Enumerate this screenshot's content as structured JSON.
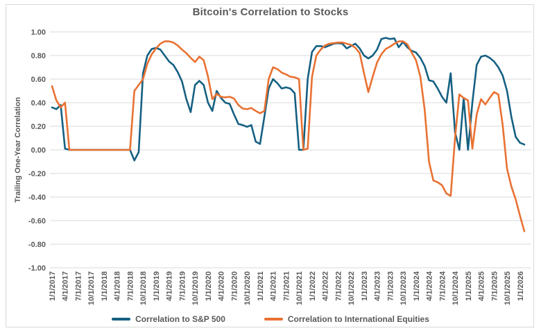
{
  "chart_data": {
    "type": "line",
    "title": "Bitcoin's Correlation to Stocks",
    "xlabel": "",
    "ylabel": "Trailing One-Year Correlation",
    "ylim": [
      -1.0,
      1.0
    ],
    "ytick_step": 0.2,
    "ytick_labels": [
      "1.00",
      "0.80",
      "0.60",
      "0.40",
      "0.20",
      "0.00",
      "-0.20",
      "-0.40",
      "-0.60",
      "-0.80",
      "-1.00"
    ],
    "x_tick_every": 3,
    "x_tick_labels": [
      "1/1/2017",
      "4/1/2017",
      "7/1/2017",
      "10/1/2017",
      "1/1/2018",
      "4/1/2018",
      "7/1/2018",
      "10/1/2018",
      "1/1/2019",
      "4/1/2019",
      "7/1/2019",
      "10/1/2019",
      "1/1/2020",
      "4/1/2020",
      "7/1/2020",
      "10/1/2020",
      "1/1/2021",
      "4/1/2021",
      "7/1/2021",
      "10/1/2021",
      "1/1/2022",
      "4/1/2022",
      "7/1/2022",
      "10/1/2022",
      "1/1/2023",
      "4/1/2023",
      "7/1/2023",
      "10/1/2023",
      "1/1/2024",
      "4/1/2024",
      "7/1/2024",
      "10/1/2024",
      "1/1/2025",
      "4/1/2025",
      "7/1/2025",
      "10/1/2025",
      "1/1/2026"
    ],
    "grid": "horizontal",
    "legend_position": "bottom",
    "colors": {
      "grid": "#D9D9D9",
      "frame": "#D9D9D9",
      "text": "#595959",
      "background": "#FFFFFF"
    },
    "series": [
      {
        "name": "Correlation to S&P 500",
        "color": "#156082",
        "values": [
          0.36,
          0.345,
          0.38,
          0.01,
          0.0,
          0.0,
          0.0,
          0.0,
          0.0,
          0.0,
          0.0,
          0.0,
          0.0,
          0.0,
          0.0,
          0.0,
          0.0,
          0.0,
          0.0,
          -0.09,
          -0.02,
          0.65,
          0.8,
          0.855,
          0.865,
          0.85,
          0.8,
          0.75,
          0.72,
          0.66,
          0.58,
          0.43,
          0.32,
          0.55,
          0.585,
          0.55,
          0.4,
          0.33,
          0.5,
          0.44,
          0.4,
          0.39,
          0.3,
          0.22,
          0.21,
          0.195,
          0.21,
          0.07,
          0.05,
          0.28,
          0.52,
          0.6,
          0.565,
          0.52,
          0.53,
          0.52,
          0.48,
          0.0,
          0.0,
          0.6,
          0.83,
          0.88,
          0.88,
          0.87,
          0.885,
          0.9,
          0.905,
          0.9,
          0.86,
          0.88,
          0.9,
          0.86,
          0.8,
          0.775,
          0.8,
          0.85,
          0.94,
          0.95,
          0.94,
          0.945,
          0.87,
          0.915,
          0.87,
          0.84,
          0.825,
          0.78,
          0.71,
          0.59,
          0.58,
          0.52,
          0.45,
          0.4,
          0.65,
          0.15,
          0.0,
          0.44,
          0.0,
          0.4,
          0.72,
          0.79,
          0.8,
          0.78,
          0.75,
          0.7,
          0.63,
          0.5,
          0.28,
          0.11,
          0.06,
          0.045
        ]
      },
      {
        "name": "Correlation to International Equities",
        "color": "#E97132",
        "values": [
          0.54,
          0.42,
          0.36,
          0.4,
          0.0,
          0.0,
          0.0,
          0.0,
          0.0,
          0.0,
          0.0,
          0.0,
          0.0,
          0.0,
          0.0,
          0.0,
          0.0,
          0.0,
          0.0,
          0.5,
          0.55,
          0.6,
          0.73,
          0.81,
          0.86,
          0.9,
          0.92,
          0.92,
          0.91,
          0.885,
          0.85,
          0.82,
          0.78,
          0.745,
          0.79,
          0.76,
          0.62,
          0.43,
          0.475,
          0.45,
          0.445,
          0.45,
          0.435,
          0.38,
          0.35,
          0.345,
          0.355,
          0.33,
          0.31,
          0.33,
          0.6,
          0.7,
          0.685,
          0.655,
          0.64,
          0.62,
          0.615,
          0.6,
          0.0,
          0.01,
          0.62,
          0.8,
          0.85,
          0.885,
          0.9,
          0.905,
          0.91,
          0.91,
          0.9,
          0.89,
          0.865,
          0.82,
          0.65,
          0.49,
          0.62,
          0.74,
          0.81,
          0.855,
          0.875,
          0.9,
          0.92,
          0.92,
          0.895,
          0.825,
          0.76,
          0.62,
          0.34,
          -0.1,
          -0.26,
          -0.275,
          -0.3,
          -0.37,
          -0.39,
          0.1,
          0.47,
          0.44,
          0.42,
          0.01,
          0.3,
          0.43,
          0.385,
          0.44,
          0.49,
          0.47,
          0.21,
          -0.16,
          -0.31,
          -0.42,
          -0.56,
          -0.69
        ]
      }
    ]
  }
}
